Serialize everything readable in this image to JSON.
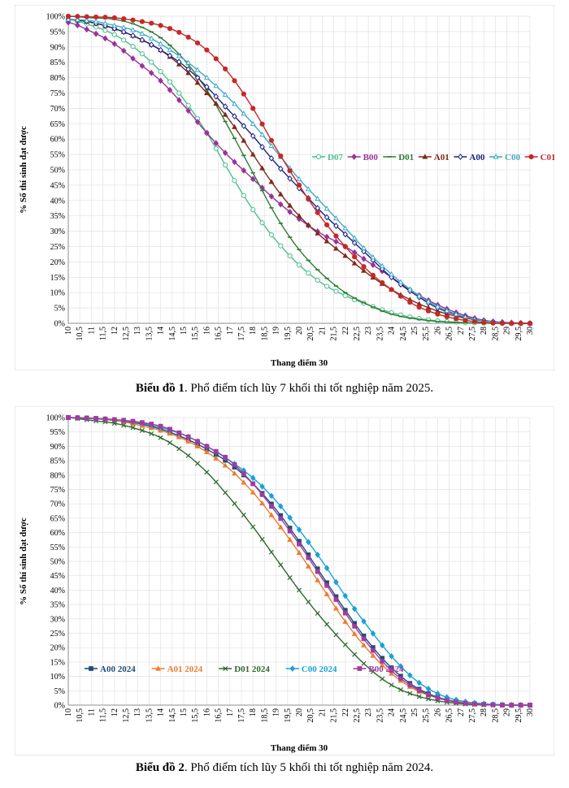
{
  "captions": [
    {
      "label": "Biểu đồ 1",
      "text": ". Phổ điểm tích lũy 7 khối thi tốt nghiệp năm 2025."
    },
    {
      "label": "Biểu đồ 2",
      "text": ". Phổ điểm tích lũy 5 khối thi tốt nghiệp năm 2024."
    }
  ],
  "chart_data": [
    {
      "type": "line",
      "xlabel": "Thang điểm 30",
      "ylabel": "% Số thí sinh đạt được",
      "x_ticks": [
        "10",
        "10,5",
        "11",
        "11,5",
        "12",
        "12,5",
        "13",
        "13,5",
        "14",
        "14,5",
        "15",
        "15,5",
        "16",
        "16,5",
        "17",
        "17,5",
        "18",
        "18,5",
        "19",
        "19,5",
        "20",
        "20,5",
        "21",
        "21,5",
        "22",
        "22,5",
        "23",
        "23,5",
        "24",
        "24,5",
        "25",
        "25,5",
        "26",
        "26,5",
        "27",
        "27,5",
        "28",
        "28,5",
        "29",
        "29,5",
        "30"
      ],
      "y_ticks": [
        "0%",
        "5%",
        "10%",
        "15%",
        "20%",
        "25%",
        "30%",
        "35%",
        "40%",
        "45%",
        "50%",
        "55%",
        "60%",
        "65%",
        "70%",
        "75%",
        "80%",
        "85%",
        "90%",
        "95%",
        "100%"
      ],
      "xlim": [
        10,
        30
      ],
      "ylim": [
        0,
        100
      ],
      "grid": true,
      "legend_position": "right-middle",
      "x": [
        10,
        11,
        12,
        13,
        14,
        15,
        16,
        17,
        18,
        19,
        20,
        21,
        22,
        23,
        24,
        25,
        26,
        27,
        28,
        29,
        30
      ],
      "series": [
        {
          "name": "D07",
          "color": "#4dbf8a",
          "marker": "open-circle",
          "values": [
            99,
            97,
            94,
            89,
            82,
            73,
            62,
            49,
            37,
            27,
            19,
            13,
            9,
            6,
            3.5,
            1.8,
            0.8,
            0.3,
            0.1,
            0,
            0
          ]
        },
        {
          "name": "B00",
          "color": "#993399",
          "marker": "diamond",
          "values": [
            98,
            95,
            91,
            85,
            79,
            71,
            62,
            54,
            47,
            40,
            34,
            29,
            25,
            20,
            15,
            10,
            6,
            3,
            1,
            0.3,
            0
          ]
        },
        {
          "name": "D01",
          "color": "#2e7d32",
          "marker": "dash",
          "values": [
            100,
            99.5,
            99,
            97,
            93,
            86,
            76,
            63,
            49,
            35,
            24,
            16,
            10,
            6,
            3,
            1.5,
            0.6,
            0.2,
            0.05,
            0,
            0
          ]
        },
        {
          "name": "A01",
          "color": "#7b2c1b",
          "marker": "triangle",
          "values": [
            99,
            98,
            96,
            93,
            89,
            83,
            75,
            66,
            55,
            44,
            35,
            28,
            22,
            16,
            11,
            7,
            4,
            2,
            0.8,
            0.2,
            0
          ]
        },
        {
          "name": "A00",
          "color": "#1a237e",
          "marker": "open-diamond",
          "values": [
            99,
            98,
            96,
            93,
            89,
            84,
            77,
            69,
            61,
            52,
            44,
            36,
            29,
            22,
            15,
            9.5,
            5,
            2.4,
            0.8,
            0.2,
            0
          ]
        },
        {
          "name": "C00",
          "color": "#3fa7c8",
          "marker": "open-triangle",
          "values": [
            99,
            98.5,
            97,
            95,
            91,
            86,
            80,
            73,
            65,
            56,
            47,
            39,
            31,
            23,
            16,
            10,
            5.5,
            2.5,
            0.8,
            0.2,
            0
          ]
        },
        {
          "name": "C01",
          "color": "#c62828",
          "marker": "dot",
          "values": [
            100,
            99.8,
            99.5,
            98.5,
            97,
            94,
            89,
            81,
            70,
            57,
            45,
            34,
            25,
            17,
            11,
            6,
            3,
            1.2,
            0.3,
            0,
            0
          ]
        }
      ]
    },
    {
      "type": "line",
      "xlabel": "Thang điểm 30",
      "ylabel": "% Số thí sinh đạt được",
      "x_ticks": [
        "10",
        "10,5",
        "11",
        "11,5",
        "12",
        "12,5",
        "13",
        "13,5",
        "14",
        "14,5",
        "15",
        "15,5",
        "16",
        "16,5",
        "17",
        "17,5",
        "18",
        "18,5",
        "19",
        "19,5",
        "20",
        "20,5",
        "21",
        "21,5",
        "22",
        "22,5",
        "23",
        "23,5",
        "24",
        "24,5",
        "25",
        "25,5",
        "26",
        "26,5",
        "27",
        "27,5",
        "28",
        "28,5",
        "29",
        "29,5",
        "30"
      ],
      "y_ticks": [
        "0%",
        "5%",
        "10%",
        "15%",
        "20%",
        "25%",
        "30%",
        "35%",
        "40%",
        "45%",
        "50%",
        "55%",
        "60%",
        "65%",
        "70%",
        "75%",
        "80%",
        "85%",
        "90%",
        "95%",
        "100%"
      ],
      "xlim": [
        10,
        30
      ],
      "ylim": [
        0,
        100
      ],
      "grid": true,
      "legend_position": "bottom-left",
      "x": [
        10,
        11,
        12,
        13,
        14,
        15,
        16,
        17,
        18,
        19,
        20,
        21,
        22,
        23,
        24,
        25,
        26,
        27,
        28,
        29,
        30
      ],
      "series": [
        {
          "name": "A00 2024",
          "color": "#1f4e79",
          "marker": "square",
          "values": [
            100,
            99.7,
            99,
            98,
            96,
            93,
            89,
            84,
            77,
            68,
            57,
            45,
            33,
            22,
            13,
            6.5,
            2.8,
            1,
            0.3,
            0.05,
            0
          ]
        },
        {
          "name": "A01 2024",
          "color": "#ed7d31",
          "marker": "triangle",
          "values": [
            100,
            99.6,
            99,
            97.5,
            95.5,
            92.5,
            88,
            82,
            74,
            64,
            53,
            41,
            29,
            19,
            11,
            5.5,
            2.5,
            0.9,
            0.3,
            0.05,
            0
          ]
        },
        {
          "name": "D01 2024",
          "color": "#2e6b2e",
          "marker": "cross",
          "values": [
            100,
            99,
            98,
            96,
            93,
            88,
            81,
            72,
            62,
            51,
            40,
            30,
            21,
            13,
            7,
            3.5,
            1.5,
            0.5,
            0.1,
            0,
            0
          ]
        },
        {
          "name": "C00 2024",
          "color": "#1ba1d6",
          "marker": "diamond",
          "values": [
            100,
            99.7,
            99.2,
            98.3,
            96.5,
            94,
            90,
            85,
            79,
            71,
            61,
            50,
            38,
            27,
            17,
            9,
            4,
            1.5,
            0.5,
            0.1,
            0
          ]
        },
        {
          "name": "B00 2024",
          "color": "#a03ba0",
          "marker": "square",
          "values": [
            100,
            99.8,
            99.3,
            98.5,
            97,
            94,
            90,
            85,
            77,
            67,
            56,
            44,
            32,
            21,
            12,
            6,
            2.5,
            0.8,
            0.2,
            0,
            0
          ]
        }
      ]
    }
  ]
}
